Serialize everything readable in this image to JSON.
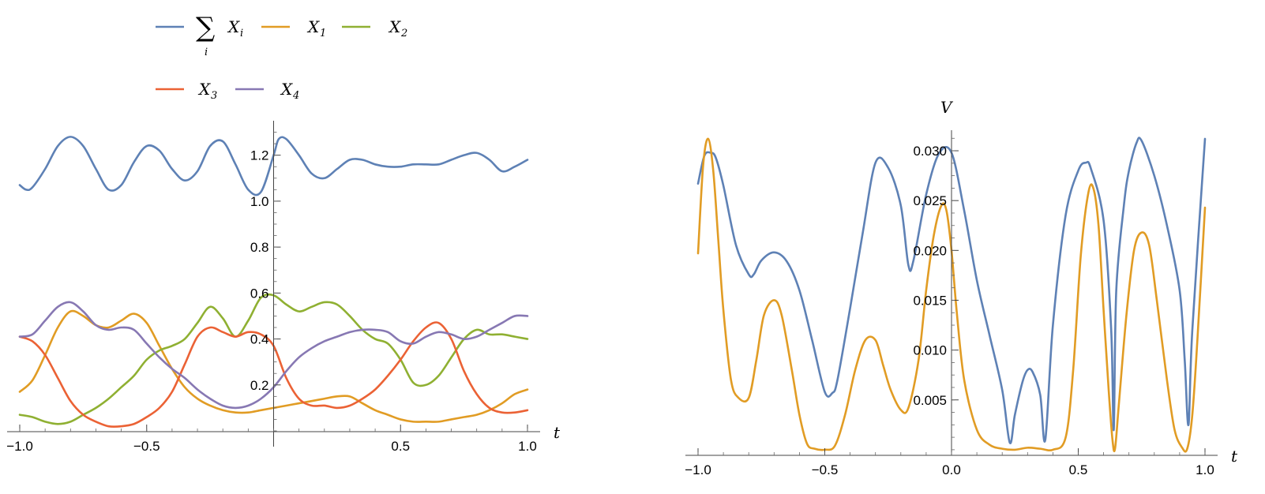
{
  "chart_data": [
    {
      "type": "line",
      "title": "",
      "xlabel": "t",
      "ylabel": "",
      "xlim": [
        -1.0,
        1.0
      ],
      "ylim": [
        0.0,
        1.35
      ],
      "x_ticks": [
        -1.0,
        -0.5,
        0.5,
        1.0
      ],
      "x_tick_labels": [
        "−1.0",
        "−0.5",
        "0.5",
        "1.0"
      ],
      "y_ticks": [
        0.2,
        0.4,
        0.6,
        0.8,
        1.0,
        1.2
      ],
      "y_tick_labels": [
        "0.2",
        "0.4",
        "0.6",
        "0.8",
        "1.0",
        "1.2"
      ],
      "legend_position": "top",
      "legend": [
        {
          "symbol": "∑",
          "base": "X",
          "sub": "i",
          "sumsub": "i"
        },
        {
          "base": "X",
          "sub": "1"
        },
        {
          "base": "X",
          "sub": "2"
        },
        {
          "base": "X",
          "sub": "3"
        },
        {
          "base": "X",
          "sub": "4"
        }
      ],
      "series": [
        {
          "color": "#5e81b5",
          "x": [
            -1.0,
            -0.975,
            -0.95,
            -0.9,
            -0.85,
            -0.8,
            -0.75,
            -0.7,
            -0.65,
            -0.6,
            -0.55,
            -0.5,
            -0.45,
            -0.4,
            -0.35,
            -0.3,
            -0.25,
            -0.2,
            -0.15,
            -0.1,
            -0.05,
            0.0,
            0.02,
            0.05,
            0.1,
            0.15,
            0.2,
            0.25,
            0.3,
            0.35,
            0.4,
            0.45,
            0.5,
            0.55,
            0.6,
            0.65,
            0.7,
            0.75,
            0.8,
            0.85,
            0.9,
            0.95,
            1.0
          ],
          "y": [
            1.07,
            1.05,
            1.06,
            1.14,
            1.24,
            1.28,
            1.24,
            1.14,
            1.05,
            1.07,
            1.17,
            1.24,
            1.22,
            1.14,
            1.09,
            1.13,
            1.24,
            1.26,
            1.16,
            1.05,
            1.04,
            1.2,
            1.27,
            1.27,
            1.2,
            1.12,
            1.1,
            1.14,
            1.18,
            1.18,
            1.16,
            1.15,
            1.15,
            1.16,
            1.16,
            1.16,
            1.18,
            1.2,
            1.21,
            1.18,
            1.13,
            1.15,
            1.18
          ]
        },
        {
          "color": "#e19c24",
          "x": [
            -1.0,
            -0.95,
            -0.9,
            -0.85,
            -0.8,
            -0.75,
            -0.7,
            -0.65,
            -0.6,
            -0.55,
            -0.5,
            -0.45,
            -0.4,
            -0.35,
            -0.3,
            -0.25,
            -0.2,
            -0.15,
            -0.1,
            -0.05,
            0.0,
            0.05,
            0.1,
            0.15,
            0.2,
            0.25,
            0.3,
            0.35,
            0.4,
            0.45,
            0.5,
            0.55,
            0.6,
            0.65,
            0.7,
            0.75,
            0.8,
            0.85,
            0.9,
            0.95,
            1.0
          ],
          "y": [
            0.17,
            0.22,
            0.33,
            0.45,
            0.52,
            0.5,
            0.46,
            0.45,
            0.48,
            0.51,
            0.47,
            0.37,
            0.27,
            0.19,
            0.14,
            0.11,
            0.09,
            0.08,
            0.08,
            0.09,
            0.1,
            0.11,
            0.12,
            0.13,
            0.14,
            0.15,
            0.15,
            0.12,
            0.09,
            0.07,
            0.05,
            0.04,
            0.04,
            0.04,
            0.05,
            0.06,
            0.07,
            0.09,
            0.12,
            0.16,
            0.18
          ]
        },
        {
          "color": "#8fb032",
          "x": [
            -1.0,
            -0.95,
            -0.9,
            -0.85,
            -0.8,
            -0.75,
            -0.7,
            -0.65,
            -0.6,
            -0.55,
            -0.5,
            -0.45,
            -0.4,
            -0.35,
            -0.3,
            -0.25,
            -0.2,
            -0.15,
            -0.1,
            -0.05,
            0.0,
            0.05,
            0.1,
            0.15,
            0.2,
            0.25,
            0.3,
            0.35,
            0.4,
            0.45,
            0.5,
            0.55,
            0.6,
            0.65,
            0.7,
            0.75,
            0.8,
            0.85,
            0.9,
            0.95,
            1.0
          ],
          "y": [
            0.07,
            0.06,
            0.04,
            0.03,
            0.04,
            0.07,
            0.1,
            0.14,
            0.19,
            0.24,
            0.31,
            0.35,
            0.37,
            0.4,
            0.47,
            0.54,
            0.49,
            0.41,
            0.48,
            0.58,
            0.59,
            0.55,
            0.52,
            0.54,
            0.56,
            0.55,
            0.5,
            0.44,
            0.4,
            0.38,
            0.31,
            0.21,
            0.2,
            0.24,
            0.32,
            0.4,
            0.44,
            0.42,
            0.42,
            0.41,
            0.4
          ]
        },
        {
          "color": "#eb6235",
          "x": [
            -1.0,
            -0.95,
            -0.9,
            -0.85,
            -0.8,
            -0.75,
            -0.7,
            -0.65,
            -0.6,
            -0.55,
            -0.5,
            -0.45,
            -0.4,
            -0.35,
            -0.3,
            -0.25,
            -0.2,
            -0.15,
            -0.1,
            -0.05,
            0.0,
            0.05,
            0.1,
            0.15,
            0.2,
            0.25,
            0.3,
            0.35,
            0.4,
            0.45,
            0.5,
            0.55,
            0.6,
            0.65,
            0.7,
            0.75,
            0.8,
            0.85,
            0.9,
            0.95,
            1.0
          ],
          "y": [
            0.41,
            0.39,
            0.33,
            0.23,
            0.13,
            0.07,
            0.04,
            0.02,
            0.02,
            0.03,
            0.06,
            0.1,
            0.17,
            0.29,
            0.41,
            0.45,
            0.43,
            0.41,
            0.43,
            0.42,
            0.37,
            0.23,
            0.14,
            0.11,
            0.11,
            0.1,
            0.11,
            0.14,
            0.18,
            0.24,
            0.31,
            0.39,
            0.45,
            0.47,
            0.4,
            0.26,
            0.16,
            0.1,
            0.08,
            0.08,
            0.09
          ]
        },
        {
          "color": "#8778b3",
          "x": [
            -1.0,
            -0.95,
            -0.9,
            -0.85,
            -0.8,
            -0.75,
            -0.7,
            -0.65,
            -0.6,
            -0.55,
            -0.5,
            -0.45,
            -0.4,
            -0.35,
            -0.3,
            -0.25,
            -0.2,
            -0.15,
            -0.1,
            -0.05,
            0.0,
            0.05,
            0.1,
            0.15,
            0.2,
            0.25,
            0.3,
            0.35,
            0.4,
            0.45,
            0.5,
            0.55,
            0.6,
            0.65,
            0.7,
            0.75,
            0.8,
            0.85,
            0.9,
            0.95,
            1.0
          ],
          "y": [
            0.41,
            0.42,
            0.48,
            0.54,
            0.56,
            0.52,
            0.46,
            0.44,
            0.45,
            0.44,
            0.38,
            0.32,
            0.27,
            0.23,
            0.18,
            0.14,
            0.11,
            0.1,
            0.11,
            0.14,
            0.19,
            0.26,
            0.32,
            0.36,
            0.39,
            0.41,
            0.43,
            0.44,
            0.44,
            0.43,
            0.39,
            0.38,
            0.41,
            0.43,
            0.42,
            0.4,
            0.41,
            0.44,
            0.47,
            0.5,
            0.5
          ]
        }
      ]
    },
    {
      "type": "line",
      "title": "",
      "xlabel": "t",
      "ylabel": "V",
      "xlim": [
        -1.0,
        1.0
      ],
      "ylim": [
        -0.0008,
        0.0323
      ],
      "x_ticks": [
        -1.0,
        -0.5,
        0.0,
        0.5,
        1.0
      ],
      "x_tick_labels": [
        "−1.0",
        "−0.5",
        "0.0",
        "0.5",
        "1.0"
      ],
      "y_ticks": [
        0.005,
        0.01,
        0.015,
        0.02,
        0.025,
        0.03
      ],
      "y_tick_labels": [
        "0.005",
        "0.010",
        "0.015",
        "0.020",
        "0.025",
        "0.030"
      ],
      "series": [
        {
          "color": "#5e81b5",
          "x": [
            -1.0,
            -0.975,
            -0.95,
            -0.93,
            -0.9,
            -0.85,
            -0.8,
            -0.78,
            -0.75,
            -0.7,
            -0.65,
            -0.6,
            -0.55,
            -0.5,
            -0.47,
            -0.45,
            -0.4,
            -0.35,
            -0.3,
            -0.25,
            -0.2,
            -0.17,
            -0.15,
            -0.1,
            -0.05,
            0.0,
            0.05,
            0.1,
            0.15,
            0.2,
            0.23,
            0.25,
            0.28,
            0.3,
            0.32,
            0.35,
            0.37,
            0.4,
            0.45,
            0.5,
            0.53,
            0.55,
            0.6,
            0.63,
            0.64,
            0.65,
            0.68,
            0.7,
            0.73,
            0.75,
            0.8,
            0.85,
            0.9,
            0.92,
            0.935,
            0.95,
            1.0
          ],
          "y": [
            0.0267,
            0.0295,
            0.0298,
            0.0293,
            0.0265,
            0.0205,
            0.0176,
            0.0176,
            0.019,
            0.0198,
            0.0189,
            0.016,
            0.011,
            0.0058,
            0.0057,
            0.007,
            0.0142,
            0.0218,
            0.0288,
            0.0283,
            0.0245,
            0.0185,
            0.019,
            0.0256,
            0.0297,
            0.0298,
            0.024,
            0.017,
            0.0115,
            0.006,
            0.0007,
            0.0035,
            0.0068,
            0.008,
            0.0078,
            0.0055,
            0.001,
            0.0125,
            0.0235,
            0.028,
            0.0288,
            0.0282,
            0.023,
            0.012,
            0.002,
            0.016,
            0.0245,
            0.028,
            0.0308,
            0.031,
            0.0275,
            0.0225,
            0.016,
            0.009,
            0.0025,
            0.012,
            0.0312
          ]
        },
        {
          "color": "#e19c24",
          "x": [
            -1.0,
            -0.98,
            -0.96,
            -0.94,
            -0.92,
            -0.9,
            -0.87,
            -0.84,
            -0.8,
            -0.77,
            -0.74,
            -0.7,
            -0.67,
            -0.63,
            -0.6,
            -0.57,
            -0.54,
            -0.5,
            -0.46,
            -0.42,
            -0.38,
            -0.34,
            -0.3,
            -0.27,
            -0.24,
            -0.2,
            -0.17,
            -0.13,
            -0.1,
            -0.07,
            -0.04,
            -0.02,
            0.0,
            0.02,
            0.05,
            0.1,
            0.15,
            0.2,
            0.25,
            0.3,
            0.35,
            0.4,
            0.45,
            0.48,
            0.51,
            0.54,
            0.56,
            0.58,
            0.6,
            0.62,
            0.635,
            0.645,
            0.66,
            0.69,
            0.72,
            0.75,
            0.78,
            0.81,
            0.85,
            0.88,
            0.91,
            0.93,
            0.95,
            0.97,
            1.0
          ],
          "y": [
            0.0197,
            0.0285,
            0.0312,
            0.028,
            0.021,
            0.014,
            0.007,
            0.0052,
            0.0052,
            0.009,
            0.0135,
            0.015,
            0.0135,
            0.008,
            0.0035,
            0.0006,
            0.0001,
            0.0,
            0.0004,
            0.0035,
            0.008,
            0.011,
            0.011,
            0.0085,
            0.006,
            0.004,
            0.0042,
            0.009,
            0.016,
            0.0215,
            0.0245,
            0.024,
            0.02,
            0.014,
            0.007,
            0.002,
            0.0005,
            0.0001,
            0.0,
            0.0002,
            0.0001,
            0.0,
            0.0012,
            0.008,
            0.0195,
            0.0258,
            0.0262,
            0.0225,
            0.014,
            0.006,
            0.001,
            0.0001,
            0.0045,
            0.0135,
            0.02,
            0.0218,
            0.0205,
            0.015,
            0.007,
            0.002,
            0.0002,
            0.0001,
            0.0035,
            0.011,
            0.0243
          ]
        }
      ]
    }
  ]
}
